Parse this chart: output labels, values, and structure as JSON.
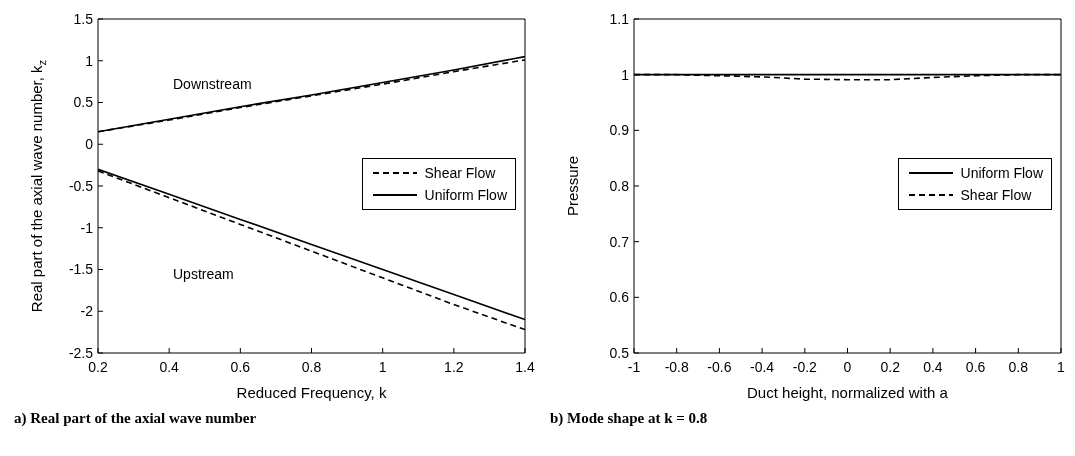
{
  "chart_data": [
    {
      "type": "line",
      "title": "a) Real part of the axial wave number",
      "xlabel": "Reduced Frequency, k",
      "ylabel": "Real part of the axial wave number, k$_{z}$",
      "x": [
        0.2,
        0.4,
        0.6,
        0.8,
        1.0,
        1.2,
        1.4
      ],
      "series": [
        {
          "name": "Shear Flow",
          "color": "#000000",
          "line_style": "dashed",
          "values": [
            0.15,
            0.29,
            0.44,
            0.58,
            0.72,
            0.87,
            1.01
          ]
        },
        {
          "name": "Uniform Flow",
          "color": "#000000",
          "line_style": "solid",
          "values": [
            0.15,
            0.3,
            0.45,
            0.59,
            0.74,
            0.89,
            1.05
          ]
        },
        {
          "color": "#000000",
          "line_style": "dashed",
          "values": [
            -0.32,
            -0.64,
            -0.96,
            -1.28,
            -1.6,
            -1.92,
            -2.22
          ]
        },
        {
          "color": "#000000",
          "line_style": "solid",
          "values": [
            -0.3,
            -0.6,
            -0.9,
            -1.2,
            -1.5,
            -1.8,
            -2.1
          ]
        }
      ],
      "xlim": [
        0.2,
        1.4
      ],
      "xticks": [
        0.2,
        0.4,
        0.6,
        0.8,
        1,
        1.2,
        1.4
      ],
      "ylim": [
        -2.5,
        1.5
      ],
      "yticks": [
        -2.5,
        -2,
        -1.5,
        -1,
        -0.5,
        0,
        0.5,
        1,
        1.5
      ],
      "annotations": [
        "Downstream",
        "Upstream"
      ],
      "legend": "right"
    },
    {
      "type": "line",
      "title": "b) Mode shape at k = 0.8",
      "xlabel": "Duct height, normalized with a",
      "ylabel": "Pressure",
      "x": [
        -1,
        -0.8,
        -0.6,
        -0.4,
        -0.2,
        0,
        0.2,
        0.4,
        0.6,
        0.8,
        1
      ],
      "series": [
        {
          "name": "Uniform Flow",
          "color": "#000000",
          "line_style": "solid",
          "values": [
            1,
            1,
            1,
            1,
            1,
            1,
            1,
            1,
            1,
            1,
            1
          ]
        },
        {
          "name": "Shear Flow",
          "color": "#000000",
          "line_style": "dashed",
          "values": [
            1,
            1,
            0.998,
            0.996,
            0.992,
            0.991,
            0.991,
            0.995,
            0.998,
            1,
            1
          ]
        }
      ],
      "xlim": [
        -1,
        1
      ],
      "xticks": [
        -1,
        -0.8,
        -0.6,
        -0.4,
        -0.2,
        0,
        0.2,
        0.4,
        0.6,
        0.8,
        1
      ],
      "ylim": [
        0.5,
        1.1
      ],
      "yticks": [
        0.5,
        0.6,
        0.7,
        0.8,
        0.9,
        1,
        1.1
      ],
      "legend": "right"
    }
  ]
}
